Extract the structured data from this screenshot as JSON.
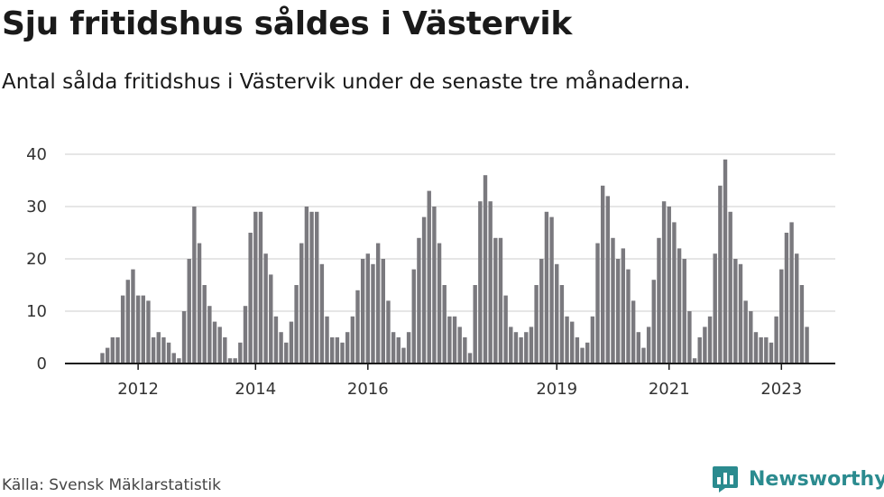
{
  "header": {
    "title": "Sju fritidshus såldes i Västervik",
    "subtitle": "Antal sålda fritidshus i Västervik under de senaste tre månaderna."
  },
  "footer": {
    "source": "Källa: Svensk Mäklarstatistik",
    "brand": "Newsworthy"
  },
  "colors": {
    "bar": "#7a797e",
    "highlight": "#2aa39a",
    "grid": "#d6d6d6",
    "brand": "#2b8b8f"
  },
  "chart_data": {
    "type": "bar",
    "ylim": [
      0,
      40
    ],
    "yticks": [
      0,
      10,
      20,
      30,
      40
    ],
    "xticks": [
      "2012",
      "2014",
      "2016",
      "2019",
      "2021",
      "2023"
    ],
    "xtick_positions": [
      7,
      30,
      52,
      89,
      111,
      133
    ],
    "grid": true,
    "highlight_index": 140,
    "highlight_label": "7",
    "values": [
      2,
      3,
      5,
      5,
      13,
      16,
      18,
      13,
      13,
      12,
      5,
      6,
      5,
      4,
      2,
      1,
      10,
      20,
      30,
      23,
      15,
      11,
      8,
      7,
      5,
      1,
      1,
      4,
      11,
      25,
      29,
      29,
      21,
      17,
      9,
      6,
      4,
      8,
      15,
      23,
      30,
      29,
      29,
      19,
      9,
      5,
      5,
      4,
      6,
      9,
      14,
      20,
      21,
      19,
      23,
      20,
      12,
      6,
      5,
      3,
      6,
      18,
      24,
      28,
      33,
      30,
      23,
      15,
      9,
      9,
      7,
      5,
      2,
      15,
      31,
      36,
      31,
      24,
      24,
      13,
      7,
      6,
      5,
      6,
      7,
      15,
      20,
      29,
      28,
      19,
      15,
      9,
      8,
      5,
      3,
      4,
      9,
      23,
      34,
      32,
      24,
      20,
      22,
      18,
      12,
      6,
      3,
      7,
      16,
      24,
      31,
      30,
      27,
      22,
      20,
      10,
      1,
      5,
      7,
      9,
      21,
      34,
      39,
      29,
      20,
      19,
      12,
      10,
      6,
      5,
      5,
      4,
      9,
      18,
      25,
      27,
      21,
      15,
      7
    ]
  }
}
